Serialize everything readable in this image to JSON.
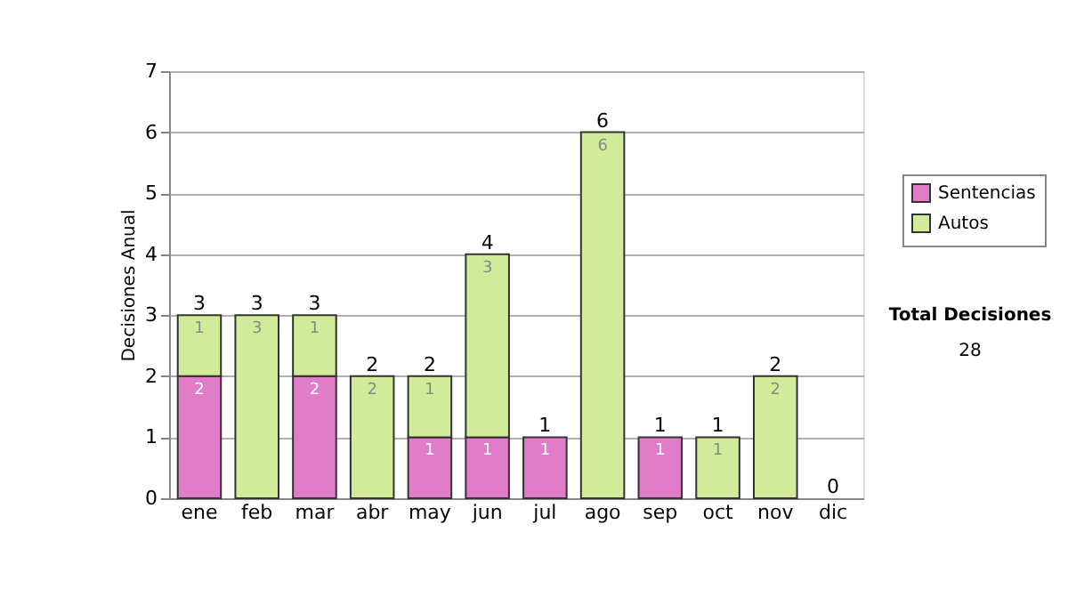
{
  "chart_data": {
    "type": "bar",
    "stacked": true,
    "ylabel": "Decisiones Anual",
    "categories": [
      "ene",
      "feb",
      "mar",
      "abr",
      "may",
      "jun",
      "jul",
      "ago",
      "sep",
      "oct",
      "nov",
      "dic"
    ],
    "series": [
      {
        "name": "Sentencias",
        "color": "#e07cc8",
        "values": [
          2,
          0,
          2,
          0,
          1,
          1,
          1,
          0,
          1,
          0,
          0,
          0
        ],
        "value_labels": [
          "2",
          null,
          "2",
          null,
          "1",
          "1",
          "1",
          null,
          "1",
          null,
          null,
          null
        ]
      },
      {
        "name": "Autos",
        "color": "#d2eb9b",
        "values": [
          1,
          3,
          1,
          2,
          1,
          3,
          0,
          6,
          0,
          1,
          2,
          0
        ],
        "value_labels": [
          "1",
          "3",
          "1",
          "2",
          "1",
          "3",
          null,
          "6",
          null,
          "1",
          "2",
          null
        ]
      }
    ],
    "totals": [
      "3",
      "3",
      "3",
      "2",
      "2",
      "4",
      "1",
      "6",
      "1",
      "1",
      "2",
      "0"
    ],
    "ylim": [
      0,
      7
    ],
    "yticks": [
      0,
      1,
      2,
      3,
      4,
      5,
      6,
      7
    ],
    "grid": "y",
    "legend": "right",
    "annotations": [
      "Total Decisiones",
      "28"
    ]
  }
}
